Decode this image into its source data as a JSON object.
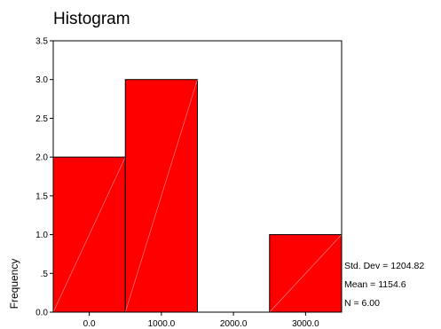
{
  "chart_data": {
    "type": "bar",
    "title": "Histogram",
    "xlabel": "",
    "ylabel": "Frequency",
    "x_range": [
      -500,
      3500
    ],
    "ylim": [
      0,
      3.5
    ],
    "grid": false,
    "bins": [
      {
        "from": -500,
        "to": 500,
        "value": 2
      },
      {
        "from": 500,
        "to": 1500,
        "value": 3
      },
      {
        "from": 1500,
        "to": 2500,
        "value": 0
      },
      {
        "from": 2500,
        "to": 3500,
        "value": 1
      }
    ],
    "x_ticks": [
      {
        "value": 0,
        "label": "0.0"
      },
      {
        "value": 1000,
        "label": "1000.0"
      },
      {
        "value": 2000,
        "label": "2000.0"
      },
      {
        "value": 3000,
        "label": "3000.0"
      }
    ],
    "y_ticks": [
      {
        "value": 0,
        "label": "0.0"
      },
      {
        "value": 0.5,
        "label": ".5"
      },
      {
        "value": 1.0,
        "label": "1.0"
      },
      {
        "value": 1.5,
        "label": "1.5"
      },
      {
        "value": 2.0,
        "label": "2.0"
      },
      {
        "value": 2.5,
        "label": "2.5"
      },
      {
        "value": 3.0,
        "label": "3.0"
      },
      {
        "value": 3.5,
        "label": "3.5"
      }
    ],
    "bar_color": "#ff0000",
    "stats": {
      "std_dev": "Std. Dev = 1204.82",
      "mean": "Mean = 1154.6",
      "n": "N = 6.00"
    }
  }
}
